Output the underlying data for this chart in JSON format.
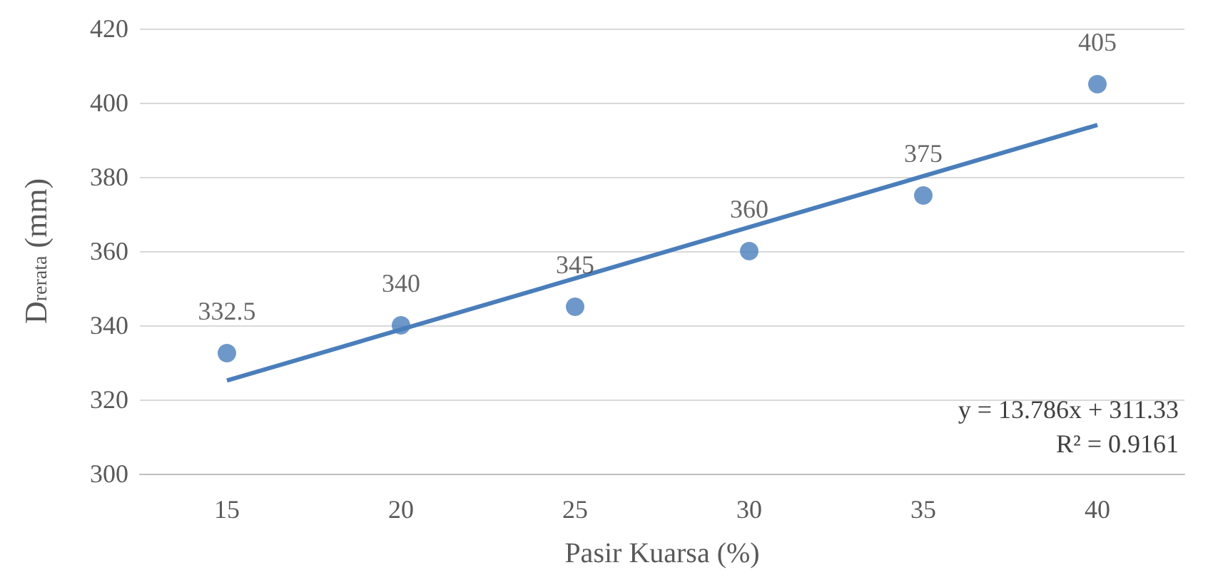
{
  "chart_data": {
    "type": "scatter",
    "xlabel": "Pasir Kuarsa (%)",
    "ylabel": "D$_{rerata}$ (mm)",
    "categories": [
      "15",
      "20",
      "25",
      "30",
      "35",
      "40"
    ],
    "series": [
      {
        "color": "#4a7ebb",
        "values": [
          332.5,
          340,
          345,
          360,
          375,
          405
        ],
        "data_labels": true,
        "marker": "circle"
      },
      {
        "type": "line",
        "x": [
          "15",
          "40"
        ],
        "color": "#4a7ebb",
        "values": [
          325.1,
          394.0
        ],
        "marker": "none",
        "line_style": "solid"
      }
    ],
    "ylim": [
      300,
      420
    ],
    "yticks": [
      300,
      320,
      340,
      360,
      380,
      400,
      420
    ],
    "grid": "y",
    "annotations": [
      "y = 13.786x + 311.33",
      "R² = 0.9161"
    ]
  }
}
